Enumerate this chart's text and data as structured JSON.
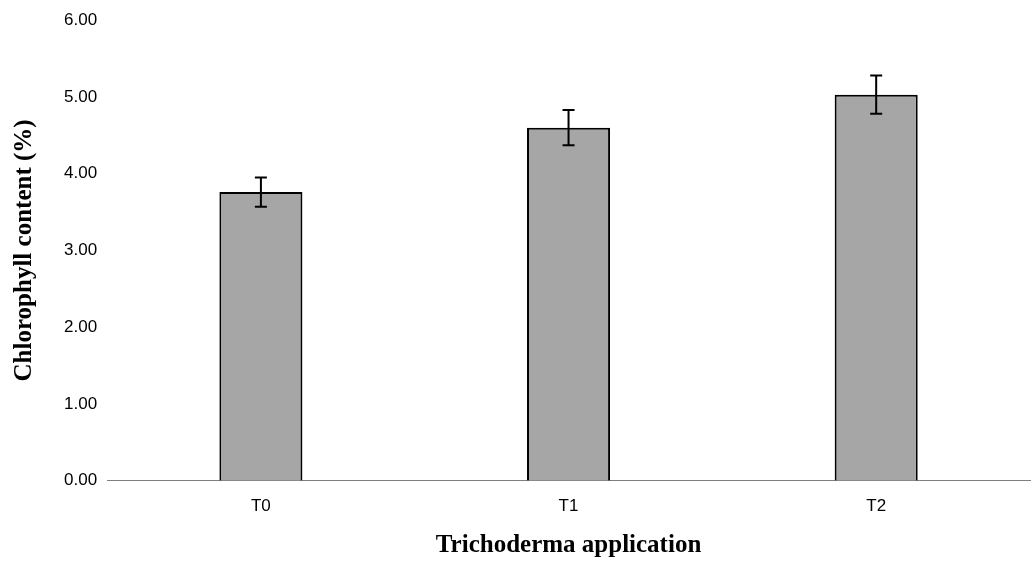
{
  "chart_data": {
    "type": "bar",
    "xlabel": "Trichoderma application",
    "ylabel": "Chlorophyll content (%)",
    "categories": [
      "T0",
      "T1",
      "T2"
    ],
    "values": [
      3.76,
      4.6,
      5.03
    ],
    "errors": [
      0.19,
      0.23,
      0.25
    ],
    "color": "#a6a6a6",
    "ylim": [
      0,
      6
    ],
    "yticks": [
      {
        "value": 0,
        "label": "0.00"
      },
      {
        "value": 1,
        "label": "1.00"
      },
      {
        "value": 2,
        "label": "2.00"
      },
      {
        "value": 3,
        "label": "3.00"
      },
      {
        "value": 4,
        "label": "4.00"
      },
      {
        "value": 5,
        "label": "5.00"
      },
      {
        "value": 6,
        "label": "6.00"
      }
    ],
    "grid": false,
    "legend": false
  }
}
